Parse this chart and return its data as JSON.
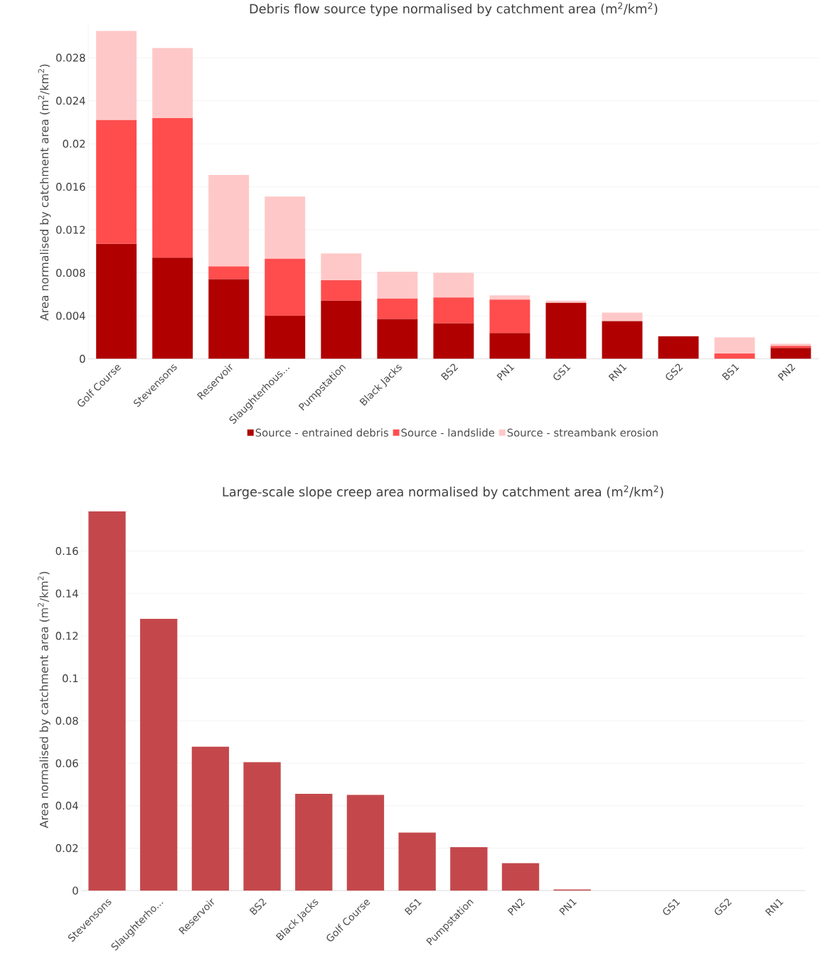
{
  "chart_data": [
    {
      "type": "bar",
      "stacked": true,
      "title": "Debris flow source type normalised by catchment area (m$^{2}$/km$^{2}$)",
      "ylabel": "Area normalised by catchment area (m$^{2}$/km$^{2}$)",
      "categories": [
        "Golf Course",
        "Stevensons",
        "Reservoir",
        "Slaughterhous...",
        "Pumpstation",
        "Black Jacks",
        "BS2",
        "PN1",
        "GS1",
        "RN1",
        "GS2",
        "BS1",
        "PN2"
      ],
      "series": [
        {
          "name": "Source - entrained debris",
          "color": "#b00000",
          "values": [
            0.0107,
            0.0094,
            0.0074,
            0.004,
            0.0054,
            0.0037,
            0.0033,
            0.0024,
            0.0052,
            0.0035,
            0.0021,
            0,
            0.001
          ]
        },
        {
          "name": "Source - landslide",
          "color": "#ff4d4d",
          "values": [
            0.0115,
            0.013,
            0.0012,
            0.0053,
            0.0019,
            0.0019,
            0.0024,
            0.0031,
            0,
            0,
            0,
            0.0005,
            0.0002
          ]
        },
        {
          "name": "Source - streambank erosion",
          "color": "#ffc8c8",
          "values": [
            0.0083,
            0.0065,
            0.0085,
            0.0058,
            0.0025,
            0.0025,
            0.0023,
            0.0004,
            0.0002,
            0.0008,
            0,
            0.0015,
            0.0002
          ]
        }
      ],
      "ylim": [
        0,
        0.031
      ],
      "yticks": [
        0,
        0.004,
        0.008,
        0.012,
        0.016,
        0.02,
        0.024,
        0.028
      ],
      "grid": "y",
      "legend": "bottom"
    },
    {
      "type": "bar",
      "title": "Large-scale slope creep area normalised by catchment area (m$^{2}$/km$^{2}$)",
      "ylabel": "Area normalised by catchment area (m$^{2}$/km$^{2}$)",
      "categories": [
        "Stevensons",
        "Slaughterho...",
        "Reservoir",
        "BS2",
        "Black Jacks",
        "Golf Course",
        "BS1",
        "Pumpstation",
        "PN2",
        "PN1",
        null,
        "GS1",
        "GS2",
        "RN1"
      ],
      "values": [
        0.1787,
        0.128,
        0.0678,
        0.0605,
        0.0456,
        0.0451,
        0.0273,
        0.0205,
        0.0129,
        0.0005,
        0,
        0,
        0,
        0
      ],
      "color": "#c4484b",
      "ylim": [
        0,
        0.18
      ],
      "yticks": [
        0,
        0.02,
        0.04,
        0.06,
        0.08,
        0.1,
        0.12,
        0.14,
        0.16
      ],
      "grid": "y"
    }
  ]
}
